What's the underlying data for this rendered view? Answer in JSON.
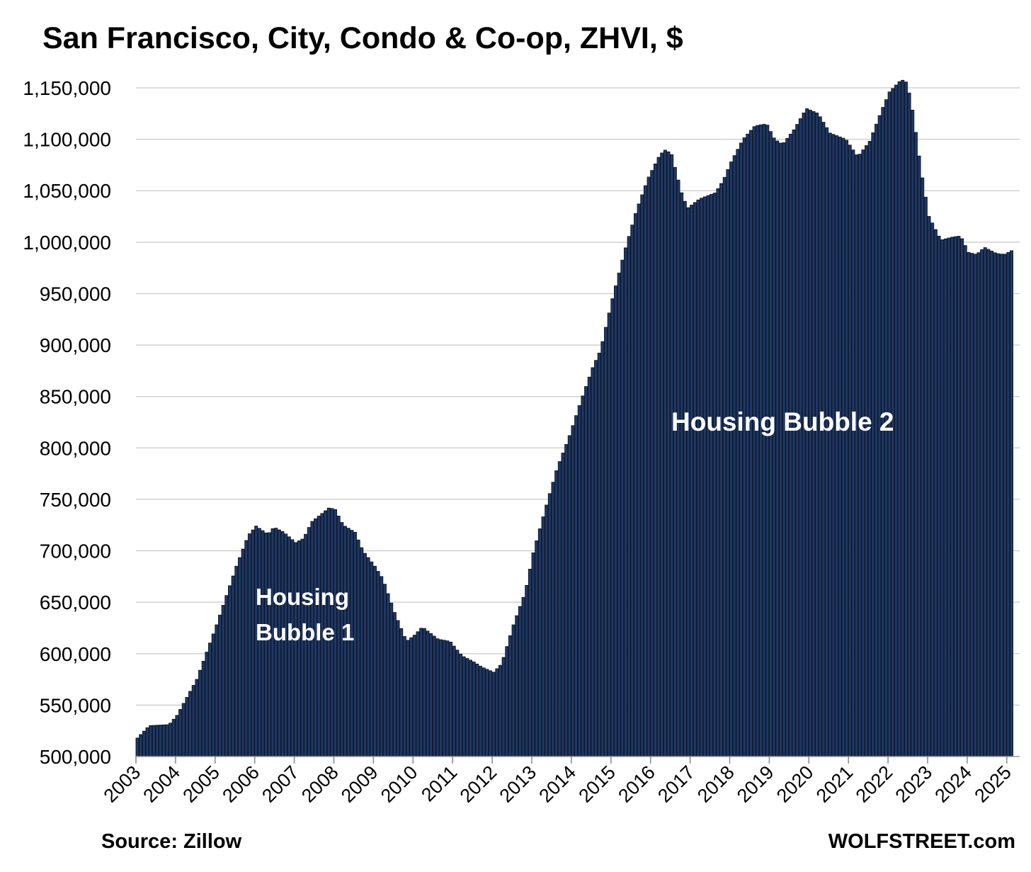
{
  "chart_data": {
    "type": "bar",
    "title": "San Francisco, City, Condo & Co-op, ZHVI, $",
    "xlabel": "",
    "ylabel": "",
    "ylim": [
      500000,
      1160000
    ],
    "grid": true,
    "bar_color": "#1f3864",
    "bar_edge_color": "#0d1526",
    "gridline_color": "#d0d0d0",
    "yticks": [
      "500,000",
      "550,000",
      "600,000",
      "650,000",
      "700,000",
      "750,000",
      "800,000",
      "850,000",
      "900,000",
      "950,000",
      "1,000,000",
      "1,050,000",
      "1,100,000",
      "1,150,000"
    ],
    "ytick_values": [
      500000,
      550000,
      600000,
      650000,
      700000,
      750000,
      800000,
      850000,
      900000,
      950000,
      1000000,
      1050000,
      1100000,
      1150000
    ],
    "xticks": [
      "2003",
      "2004",
      "2005",
      "2006",
      "2007",
      "2008",
      "2009",
      "2010",
      "2011",
      "2012",
      "2013",
      "2014",
      "2015",
      "2016",
      "2017",
      "2018",
      "2019",
      "2020",
      "2021",
      "2022",
      "2023",
      "2024",
      "2025"
    ],
    "x_start": "2003-01",
    "frequency": "monthly",
    "anchors": [
      [
        2003.0,
        518000
      ],
      [
        2003.3,
        530000
      ],
      [
        2003.8,
        531000
      ],
      [
        2004.0,
        540000
      ],
      [
        2004.5,
        575000
      ],
      [
        2005.0,
        628000
      ],
      [
        2005.5,
        685000
      ],
      [
        2005.8,
        715000
      ],
      [
        2006.0,
        724000
      ],
      [
        2006.3,
        716000
      ],
      [
        2006.45,
        723000
      ],
      [
        2006.7,
        718000
      ],
      [
        2007.0,
        708000
      ],
      [
        2007.2,
        712000
      ],
      [
        2007.4,
        728000
      ],
      [
        2007.85,
        742000
      ],
      [
        2008.0,
        740000
      ],
      [
        2008.2,
        725000
      ],
      [
        2008.5,
        718000
      ],
      [
        2008.7,
        700000
      ],
      [
        2009.0,
        685000
      ],
      [
        2009.2,
        673000
      ],
      [
        2009.5,
        640000
      ],
      [
        2009.8,
        612000
      ],
      [
        2010.0,
        618000
      ],
      [
        2010.2,
        626000
      ],
      [
        2010.4,
        620000
      ],
      [
        2010.6,
        614000
      ],
      [
        2010.9,
        612000
      ],
      [
        2011.2,
        598000
      ],
      [
        2011.5,
        592000
      ],
      [
        2011.7,
        587000
      ],
      [
        2012.0,
        582000
      ],
      [
        2012.2,
        590000
      ],
      [
        2012.5,
        628000
      ],
      [
        2012.8,
        660000
      ],
      [
        2013.0,
        698000
      ],
      [
        2013.3,
        740000
      ],
      [
        2013.6,
        780000
      ],
      [
        2013.9,
        810000
      ],
      [
        2014.2,
        845000
      ],
      [
        2014.5,
        878000
      ],
      [
        2014.7,
        895000
      ],
      [
        2015.0,
        945000
      ],
      [
        2015.3,
        990000
      ],
      [
        2015.6,
        1030000
      ],
      [
        2015.9,
        1062000
      ],
      [
        2016.2,
        1085000
      ],
      [
        2016.35,
        1090000
      ],
      [
        2016.5,
        1085000
      ],
      [
        2016.75,
        1048000
      ],
      [
        2016.9,
        1033000
      ],
      [
        2017.2,
        1042000
      ],
      [
        2017.6,
        1048000
      ],
      [
        2017.8,
        1060000
      ],
      [
        2018.0,
        1078000
      ],
      [
        2018.3,
        1100000
      ],
      [
        2018.6,
        1113000
      ],
      [
        2018.9,
        1115000
      ],
      [
        2019.1,
        1100000
      ],
      [
        2019.3,
        1095000
      ],
      [
        2019.6,
        1110000
      ],
      [
        2019.9,
        1130000
      ],
      [
        2020.2,
        1125000
      ],
      [
        2020.5,
        1106000
      ],
      [
        2020.9,
        1100000
      ],
      [
        2021.2,
        1083000
      ],
      [
        2021.5,
        1098000
      ],
      [
        2021.8,
        1128000
      ],
      [
        2022.0,
        1146000
      ],
      [
        2022.3,
        1158000
      ],
      [
        2022.45,
        1155000
      ],
      [
        2022.6,
        1125000
      ],
      [
        2022.8,
        1070000
      ],
      [
        2023.0,
        1025000
      ],
      [
        2023.3,
        1002000
      ],
      [
        2023.6,
        1005000
      ],
      [
        2023.8,
        1006000
      ],
      [
        2024.0,
        990000
      ],
      [
        2024.2,
        988000
      ],
      [
        2024.4,
        995000
      ],
      [
        2024.7,
        989000
      ],
      [
        2024.9,
        988000
      ],
      [
        2025.1,
        992000
      ]
    ],
    "annotations": [
      "Housing Bubble 1",
      "Housing Bubble 2"
    ]
  },
  "annotation_1": {
    "line1": "Housing",
    "line2": "Bubble 1"
  },
  "annotation_2": {
    "text": "Housing Bubble 2"
  },
  "source": "Source: Zillow",
  "credit": "WOLFSTREET.com"
}
